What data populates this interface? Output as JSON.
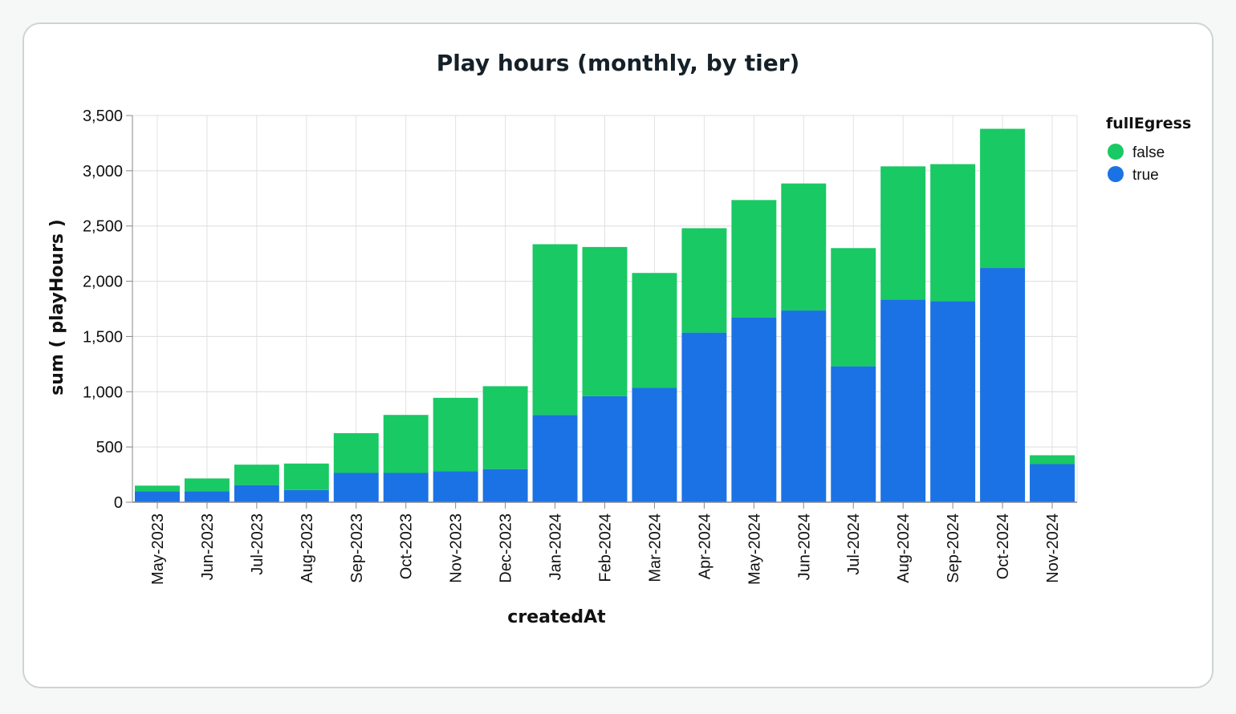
{
  "chart_data": {
    "type": "bar",
    "stacked": true,
    "title": "Play hours (monthly, by tier)",
    "xlabel": "createdAt",
    "ylabel": "sum ( playHours )",
    "ylim": [
      0,
      3500
    ],
    "yticks": [
      0,
      500,
      1000,
      1500,
      2000,
      2500,
      3000,
      3500
    ],
    "ytick_labels": [
      "0",
      "500",
      "1,000",
      "1,500",
      "2,000",
      "2,500",
      "3,000",
      "3,500"
    ],
    "grid": true,
    "legend": {
      "title": "fullEgress",
      "position": "top-right",
      "entries": [
        {
          "label": "false",
          "color": "#19c964"
        },
        {
          "label": "true",
          "color": "#1b72e4"
        }
      ]
    },
    "categories": [
      "May-2023",
      "Jun-2023",
      "Jul-2023",
      "Aug-2023",
      "Sep-2023",
      "Oct-2023",
      "Nov-2023",
      "Dec-2023",
      "Jan-2024",
      "Feb-2024",
      "Mar-2024",
      "Apr-2024",
      "May-2024",
      "Jun-2024",
      "Jul-2024",
      "Aug-2024",
      "Sep-2024",
      "Oct-2024",
      "Nov-2024"
    ],
    "series": [
      {
        "name": "true",
        "color": "#1b72e4",
        "values": [
          100,
          100,
          155,
          110,
          265,
          265,
          280,
          300,
          790,
          960,
          1035,
          1535,
          1670,
          1735,
          1230,
          1835,
          1820,
          2120,
          345
        ]
      },
      {
        "name": "false",
        "color": "#19c964",
        "values": [
          50,
          115,
          185,
          240,
          360,
          525,
          665,
          750,
          1545,
          1350,
          1040,
          945,
          1065,
          1150,
          1070,
          1205,
          1240,
          1260,
          80
        ]
      }
    ]
  }
}
